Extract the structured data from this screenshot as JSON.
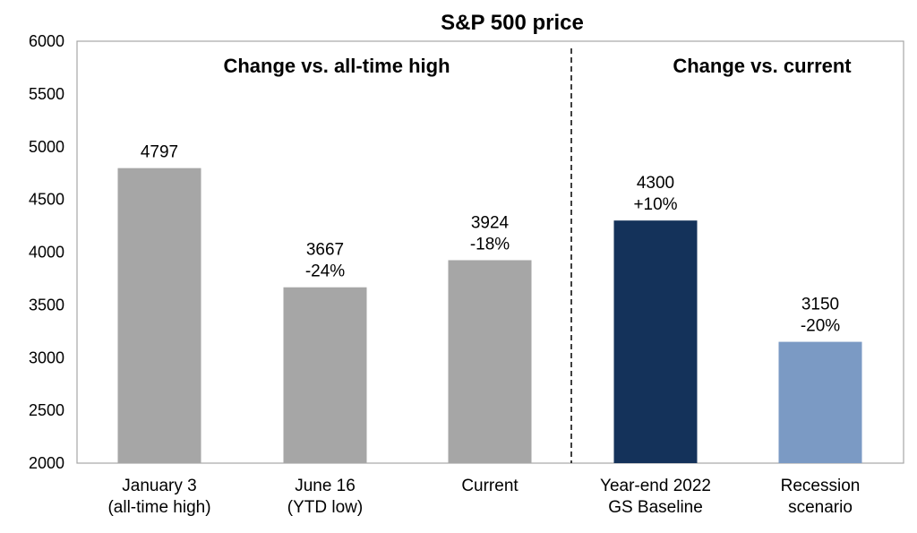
{
  "chart_data": {
    "type": "bar",
    "title": "S&P 500 price",
    "xlabel": "",
    "ylabel": "",
    "ylim": [
      2000,
      6000
    ],
    "yticks": [
      2000,
      2500,
      3000,
      3500,
      4000,
      4500,
      5000,
      5500,
      6000
    ],
    "grid": false,
    "legend": "none",
    "sections": [
      {
        "label": "Change vs. all-time high"
      },
      {
        "label": "Change vs. current"
      }
    ],
    "categories": [
      [
        "January 3",
        "(all-time high)"
      ],
      [
        "June 16",
        "(YTD low)"
      ],
      [
        "Current"
      ],
      [
        "Year-end 2022",
        "GS Baseline"
      ],
      [
        "Recession",
        "scenario"
      ]
    ],
    "values": [
      4797,
      3667,
      3924,
      4300,
      3150
    ],
    "data_labels": [
      [
        "4797"
      ],
      [
        "3667",
        "-24%"
      ],
      [
        "3924",
        "-18%"
      ],
      [
        "4300",
        "+10%"
      ],
      [
        "3150",
        "-20%"
      ]
    ],
    "colors": [
      "#a6a6a6",
      "#a6a6a6",
      "#a6a6a6",
      "#14325a",
      "#7b9ac4"
    ]
  }
}
